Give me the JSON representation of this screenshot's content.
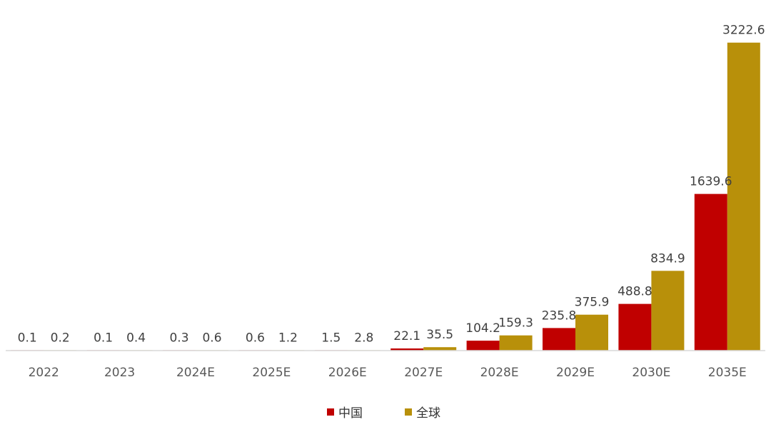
{
  "chart_data": {
    "type": "bar",
    "title": "",
    "xlabel": "",
    "ylabel": "",
    "ylim": [
      0,
      3400
    ],
    "grid": false,
    "legend_placement": "bottom",
    "categories": [
      "2022",
      "2023",
      "2024E",
      "2025E",
      "2026E",
      "2027E",
      "2028E",
      "2029E",
      "2030E",
      "2035E"
    ],
    "series": [
      {
        "name": "中国",
        "color": "#c00000",
        "values": [
          0.1,
          0.1,
          0.3,
          0.6,
          1.5,
          22.1,
          104.2,
          235.8,
          488.8,
          1639.6
        ],
        "labels": [
          "0.1",
          "0.1",
          "0.3",
          "0.6",
          "1.5",
          "22.1",
          "104.2",
          "235.8",
          "488.8",
          "1639.6"
        ]
      },
      {
        "name": "全球",
        "color": "#b8900a",
        "values": [
          0.2,
          0.4,
          0.6,
          1.2,
          2.8,
          35.5,
          159.3,
          375.9,
          834.9,
          3222.6
        ],
        "labels": [
          "0.2",
          "0.4",
          "0.6",
          "1.2",
          "2.8",
          "35.5",
          "159.3",
          "375.9",
          "834.9",
          "3222.6"
        ]
      }
    ]
  }
}
